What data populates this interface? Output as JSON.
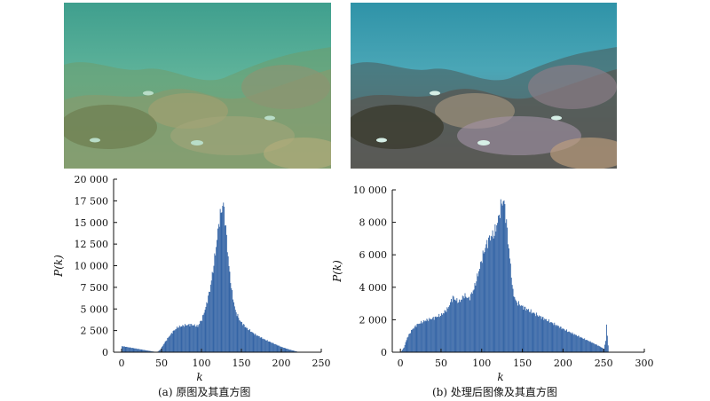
{
  "captions": {
    "a": "(a) 原图及其直方图",
    "b": "(b) 处理后图像及其直方图"
  },
  "colors": {
    "bar": "#3565a6",
    "axis": "#111111",
    "photo_a_water": "#5fb39a",
    "photo_b_water": "#3f9fb4"
  },
  "chart_data": [
    {
      "type": "bar",
      "ylabel": "P(k)",
      "xlabel": "k",
      "xlim": [
        -10,
        250
      ],
      "ylim": [
        0,
        20000
      ],
      "xticks": [
        0,
        50,
        100,
        150,
        200,
        250
      ],
      "yticks": [
        0,
        2500,
        5000,
        7500,
        10000,
        12500,
        15000,
        17500,
        20000
      ],
      "ytick_labels": [
        "0",
        "2 500",
        "5 000",
        "7 500",
        "10 000",
        "12 500",
        "15 000",
        "17 500",
        "20 000"
      ],
      "shape": {
        "k": [
          0,
          44,
          48,
          52,
          58,
          64,
          70,
          78,
          86,
          95,
          100,
          105,
          110,
          114,
          118,
          121,
          124,
          127,
          129,
          132,
          135,
          138,
          142,
          148,
          156,
          166,
          178,
          190,
          200,
          210,
          216,
          222
        ],
        "y": [
          700,
          0,
          300,
          900,
          1700,
          2400,
          2900,
          3100,
          3200,
          3000,
          3800,
          5200,
          7200,
          9500,
          12200,
          14800,
          16200,
          17200,
          15500,
          12000,
          9000,
          6800,
          4800,
          3600,
          2800,
          2100,
          1500,
          1000,
          600,
          300,
          150,
          0
        ]
      }
    },
    {
      "type": "bar",
      "ylabel": "P(k)",
      "xlabel": "k",
      "xlim": [
        -10,
        300
      ],
      "ylim": [
        0,
        10000
      ],
      "xticks": [
        0,
        50,
        100,
        150,
        200,
        250,
        300
      ],
      "yticks": [
        0,
        2000,
        4000,
        6000,
        8000,
        10000
      ],
      "ytick_labels": [
        "0",
        "2 000",
        "4 000",
        "6 000",
        "8 000",
        "10 000"
      ],
      "shape": {
        "k": [
          0,
          4,
          8,
          14,
          20,
          30,
          40,
          50,
          58,
          64,
          68,
          72,
          78,
          84,
          90,
          95,
          100,
          105,
          110,
          115,
          120,
          124,
          127,
          130,
          134,
          138,
          142,
          150,
          160,
          175,
          190,
          205,
          220,
          235,
          245,
          250,
          252,
          253,
          255,
          256
        ],
        "y": [
          0,
          300,
          900,
          1400,
          1700,
          1950,
          2100,
          2300,
          2700,
          3400,
          3200,
          3100,
          3500,
          3300,
          3900,
          4800,
          5800,
          6600,
          7100,
          7300,
          8200,
          9200,
          9300,
          8000,
          5800,
          3700,
          3100,
          2800,
          2500,
          2100,
          1700,
          1300,
          950,
          600,
          350,
          200,
          700,
          1700,
          400,
          0
        ]
      }
    }
  ]
}
